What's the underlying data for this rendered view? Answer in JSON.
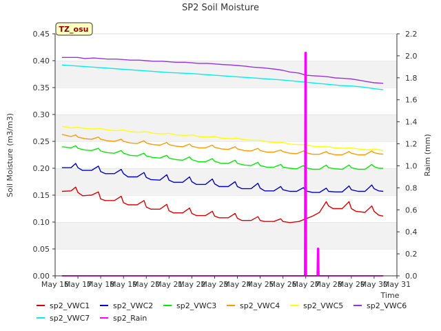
{
  "chart_data": {
    "type": "line",
    "title": "SP2 Soil Moisture",
    "xlabel": "Time",
    "ylabel": "Soil Moisture (m3/m3)",
    "y2label": "Raim (mm)",
    "annotation": "TZ_osu",
    "xlim": [
      16,
      31
    ],
    "ylim": [
      0.0,
      0.45
    ],
    "y2lim": [
      0.0,
      2.2
    ],
    "grid": "horizontal bands",
    "legend_position": "bottom",
    "x_ticks": [
      16,
      17,
      18,
      19,
      20,
      21,
      22,
      23,
      24,
      25,
      26,
      27,
      28,
      29,
      30,
      31
    ],
    "x_tick_labels": [
      "May 16",
      "May 17",
      "May 18",
      "May 19",
      "May 20",
      "May 21",
      "May 22",
      "May 23",
      "May 24",
      "May 25",
      "May 26",
      "May 27",
      "May 28",
      "May 29",
      "May 30",
      "May 31"
    ],
    "y_ticks": [
      "0.00",
      "0.05",
      "0.10",
      "0.15",
      "0.20",
      "0.25",
      "0.30",
      "0.35",
      "0.40",
      "0.45"
    ],
    "y2_ticks": [
      "0.0",
      "0.2",
      "0.4",
      "0.6",
      "0.8",
      "1.0",
      "1.2",
      "1.4",
      "1.6",
      "1.8",
      "2.0",
      "2.2"
    ],
    "series": [
      {
        "name": "sp2_VWC1",
        "color": "#dd0000",
        "axis": "left",
        "x": [
          16.3,
          16.7,
          16.9,
          17.0,
          17.2,
          17.6,
          17.9,
          18.0,
          18.2,
          18.6,
          18.9,
          19.0,
          19.2,
          19.6,
          19.9,
          20.0,
          20.2,
          20.6,
          20.9,
          21.0,
          21.2,
          21.6,
          21.9,
          22.0,
          22.2,
          22.6,
          22.9,
          23.0,
          23.2,
          23.6,
          23.9,
          24.0,
          24.2,
          24.6,
          24.9,
          25.0,
          25.2,
          25.6,
          25.9,
          26.0,
          26.3,
          26.7,
          27.0,
          27.3,
          27.6,
          27.9,
          28.0,
          28.2,
          28.6,
          28.9,
          29.0,
          29.2,
          29.6,
          29.9,
          30.0,
          30.2,
          30.4
        ],
        "values": [
          0.157,
          0.158,
          0.165,
          0.155,
          0.149,
          0.15,
          0.156,
          0.143,
          0.14,
          0.14,
          0.148,
          0.136,
          0.132,
          0.132,
          0.14,
          0.128,
          0.124,
          0.124,
          0.133,
          0.121,
          0.117,
          0.117,
          0.126,
          0.116,
          0.112,
          0.112,
          0.12,
          0.111,
          0.108,
          0.108,
          0.116,
          0.107,
          0.103,
          0.103,
          0.11,
          0.103,
          0.101,
          0.101,
          0.106,
          0.101,
          0.099,
          0.101,
          0.106,
          0.111,
          0.118,
          0.138,
          0.13,
          0.125,
          0.125,
          0.138,
          0.125,
          0.12,
          0.118,
          0.13,
          0.12,
          0.113,
          0.111
        ]
      },
      {
        "name": "sp2_VWC2",
        "color": "#0000cc",
        "axis": "left",
        "x": [
          16.3,
          16.7,
          16.9,
          17.0,
          17.2,
          17.6,
          17.9,
          18.0,
          18.2,
          18.6,
          18.9,
          19.0,
          19.2,
          19.6,
          19.9,
          20.0,
          20.2,
          20.6,
          20.9,
          21.0,
          21.2,
          21.6,
          21.9,
          22.0,
          22.2,
          22.6,
          22.9,
          23.0,
          23.2,
          23.6,
          23.9,
          24.0,
          24.2,
          24.6,
          24.9,
          25.0,
          25.2,
          25.6,
          25.9,
          26.0,
          26.3,
          26.6,
          26.9,
          27.0,
          27.3,
          27.6,
          27.9,
          28.0,
          28.3,
          28.6,
          28.9,
          29.0,
          29.3,
          29.6,
          29.9,
          30.0,
          30.2,
          30.4
        ],
        "values": [
          0.201,
          0.201,
          0.209,
          0.201,
          0.196,
          0.196,
          0.204,
          0.194,
          0.19,
          0.19,
          0.198,
          0.19,
          0.184,
          0.184,
          0.192,
          0.183,
          0.179,
          0.178,
          0.188,
          0.178,
          0.174,
          0.174,
          0.184,
          0.175,
          0.17,
          0.17,
          0.18,
          0.171,
          0.166,
          0.166,
          0.175,
          0.166,
          0.162,
          0.162,
          0.172,
          0.163,
          0.158,
          0.158,
          0.166,
          0.16,
          0.157,
          0.157,
          0.164,
          0.158,
          0.155,
          0.155,
          0.163,
          0.157,
          0.156,
          0.156,
          0.167,
          0.16,
          0.157,
          0.157,
          0.169,
          0.162,
          0.158,
          0.157
        ]
      },
      {
        "name": "sp2_VWC3",
        "color": "#00ee00",
        "axis": "left",
        "x": [
          16.3,
          16.7,
          16.9,
          17.0,
          17.3,
          17.6,
          17.9,
          18.0,
          18.3,
          18.6,
          18.9,
          19.0,
          19.3,
          19.6,
          19.9,
          20.0,
          20.3,
          20.6,
          20.9,
          21.0,
          21.3,
          21.6,
          21.9,
          22.0,
          22.3,
          22.6,
          22.9,
          23.0,
          23.3,
          23.6,
          23.9,
          24.0,
          24.3,
          24.6,
          24.9,
          25.0,
          25.3,
          25.6,
          25.9,
          26.0,
          26.3,
          26.6,
          26.9,
          27.0,
          27.3,
          27.6,
          27.9,
          28.0,
          28.3,
          28.6,
          28.9,
          29.0,
          29.3,
          29.6,
          29.9,
          30.0,
          30.2,
          30.4
        ],
        "values": [
          0.24,
          0.238,
          0.242,
          0.237,
          0.234,
          0.233,
          0.237,
          0.232,
          0.229,
          0.228,
          0.233,
          0.228,
          0.224,
          0.223,
          0.228,
          0.223,
          0.22,
          0.219,
          0.224,
          0.219,
          0.216,
          0.215,
          0.221,
          0.216,
          0.212,
          0.212,
          0.218,
          0.213,
          0.209,
          0.209,
          0.215,
          0.209,
          0.206,
          0.205,
          0.211,
          0.205,
          0.202,
          0.202,
          0.207,
          0.202,
          0.2,
          0.199,
          0.205,
          0.201,
          0.198,
          0.198,
          0.206,
          0.201,
          0.199,
          0.198,
          0.206,
          0.201,
          0.198,
          0.198,
          0.207,
          0.203,
          0.2,
          0.2
        ]
      },
      {
        "name": "sp2_VWC4",
        "color": "#ff9900",
        "axis": "left",
        "x": [
          16.3,
          16.7,
          16.9,
          17.0,
          17.3,
          17.6,
          17.9,
          18.0,
          18.3,
          18.6,
          18.9,
          19.0,
          19.3,
          19.6,
          19.9,
          20.0,
          20.3,
          20.6,
          20.9,
          21.0,
          21.3,
          21.6,
          21.9,
          22.0,
          22.3,
          22.6,
          22.9,
          23.0,
          23.3,
          23.6,
          23.9,
          24.0,
          24.3,
          24.6,
          24.9,
          25.0,
          25.3,
          25.6,
          25.9,
          26.0,
          26.3,
          26.6,
          26.9,
          27.0,
          27.3,
          27.6,
          27.9,
          28.0,
          28.3,
          28.6,
          28.9,
          29.0,
          29.3,
          29.6,
          29.9,
          30.0,
          30.2,
          30.4
        ],
        "values": [
          0.263,
          0.259,
          0.262,
          0.258,
          0.255,
          0.254,
          0.258,
          0.254,
          0.251,
          0.25,
          0.254,
          0.25,
          0.247,
          0.246,
          0.251,
          0.247,
          0.244,
          0.243,
          0.248,
          0.244,
          0.241,
          0.24,
          0.245,
          0.241,
          0.238,
          0.238,
          0.243,
          0.239,
          0.236,
          0.235,
          0.24,
          0.236,
          0.233,
          0.232,
          0.237,
          0.233,
          0.23,
          0.23,
          0.234,
          0.231,
          0.228,
          0.227,
          0.232,
          0.229,
          0.226,
          0.226,
          0.231,
          0.228,
          0.225,
          0.225,
          0.231,
          0.228,
          0.225,
          0.225,
          0.232,
          0.229,
          0.227,
          0.226
        ]
      },
      {
        "name": "sp2_VWC5",
        "color": "#ffff00",
        "axis": "left",
        "x": [
          16.3,
          16.7,
          17.0,
          17.3,
          17.7,
          18.0,
          18.3,
          18.7,
          19.0,
          19.3,
          19.7,
          20.0,
          20.3,
          20.7,
          21.0,
          21.3,
          21.7,
          22.0,
          22.3,
          22.7,
          23.0,
          23.3,
          23.7,
          24.0,
          24.3,
          24.7,
          25.0,
          25.3,
          25.7,
          26.0,
          26.3,
          26.7,
          27.0,
          27.3,
          27.7,
          28.0,
          28.3,
          28.7,
          29.0,
          29.3,
          29.7,
          30.0,
          30.4
        ],
        "values": [
          0.278,
          0.275,
          0.276,
          0.274,
          0.273,
          0.274,
          0.271,
          0.27,
          0.271,
          0.268,
          0.267,
          0.268,
          0.265,
          0.264,
          0.265,
          0.262,
          0.261,
          0.262,
          0.259,
          0.258,
          0.259,
          0.256,
          0.255,
          0.256,
          0.253,
          0.252,
          0.252,
          0.249,
          0.248,
          0.248,
          0.245,
          0.244,
          0.244,
          0.241,
          0.24,
          0.24,
          0.238,
          0.237,
          0.238,
          0.236,
          0.234,
          0.236,
          0.233
        ]
      },
      {
        "name": "sp2_VWC6",
        "color": "#9933dd",
        "axis": "left",
        "x": [
          16.3,
          16.7,
          17.0,
          17.3,
          17.7,
          18.0,
          18.3,
          18.7,
          19.0,
          19.3,
          19.7,
          20.0,
          20.3,
          20.7,
          21.0,
          21.3,
          21.7,
          22.0,
          22.3,
          22.7,
          23.0,
          23.3,
          23.7,
          24.0,
          24.3,
          24.7,
          25.0,
          25.3,
          25.7,
          26.0,
          26.3,
          26.7,
          27.0,
          27.3,
          27.7,
          28.0,
          28.3,
          28.7,
          29.0,
          29.3,
          29.7,
          30.0,
          30.4
        ],
        "values": [
          0.406,
          0.406,
          0.406,
          0.404,
          0.405,
          0.404,
          0.403,
          0.403,
          0.402,
          0.401,
          0.401,
          0.4,
          0.399,
          0.399,
          0.398,
          0.397,
          0.397,
          0.396,
          0.395,
          0.395,
          0.394,
          0.393,
          0.392,
          0.391,
          0.39,
          0.388,
          0.387,
          0.386,
          0.384,
          0.382,
          0.379,
          0.377,
          0.373,
          0.372,
          0.371,
          0.37,
          0.368,
          0.367,
          0.366,
          0.364,
          0.361,
          0.359,
          0.358
        ]
      },
      {
        "name": "sp2_VWC7",
        "color": "#00eeee",
        "axis": "left",
        "x": [
          16.3,
          17.0,
          18.0,
          19.0,
          20.0,
          21.0,
          22.0,
          23.0,
          24.0,
          25.0,
          26.0,
          26.5,
          27.0,
          27.5,
          28.0,
          28.5,
          29.0,
          29.5,
          30.0,
          30.4
        ],
        "values": [
          0.392,
          0.39,
          0.387,
          0.384,
          0.381,
          0.378,
          0.376,
          0.373,
          0.37,
          0.367,
          0.364,
          0.362,
          0.36,
          0.358,
          0.356,
          0.354,
          0.353,
          0.351,
          0.348,
          0.346
        ]
      },
      {
        "name": "sp2_Rain",
        "color": "#ff00ff",
        "axis": "right",
        "x": [
          16.3,
          26.95,
          26.97,
          26.99,
          27.01,
          27.03,
          27.05,
          27.5,
          27.52,
          27.54,
          27.56,
          27.58,
          30.4
        ],
        "values": [
          0.0,
          0.0,
          2.03,
          0.0,
          2.03,
          0.0,
          0.0,
          0.0,
          0.25,
          0.0,
          0.25,
          0.0,
          0.0
        ]
      }
    ]
  }
}
